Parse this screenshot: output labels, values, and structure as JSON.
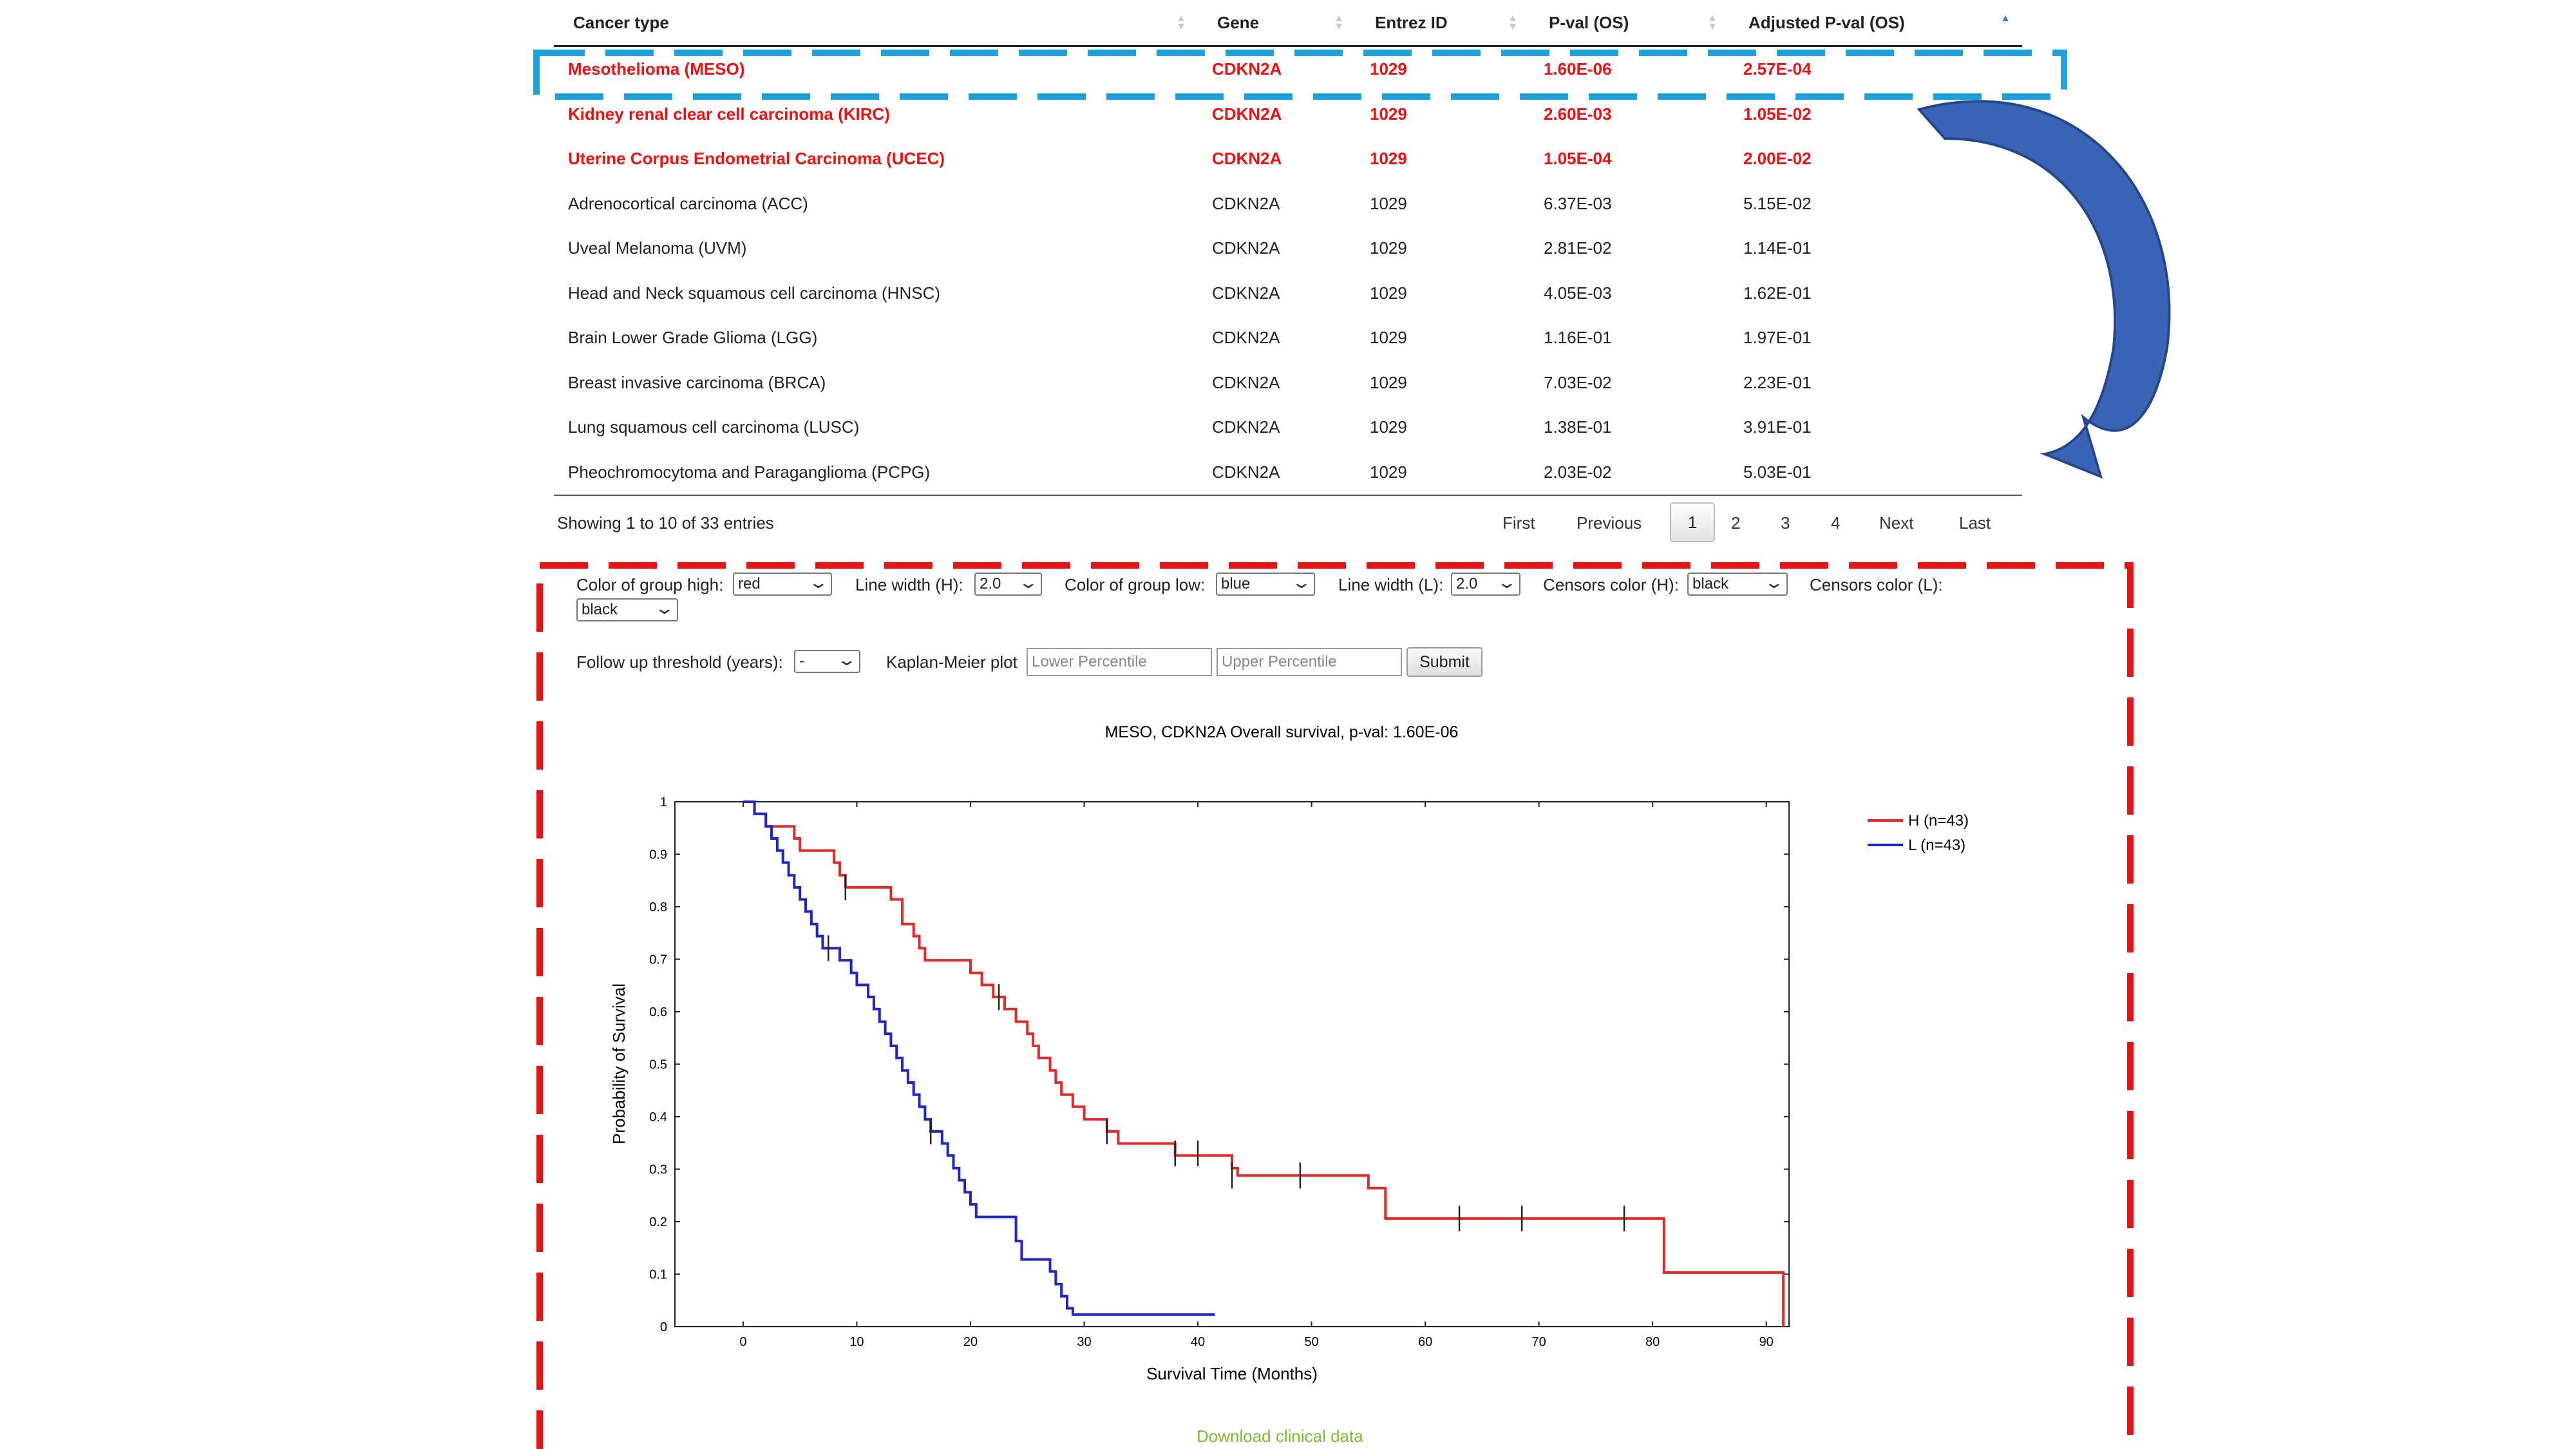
{
  "table": {
    "columns": [
      "Cancer type",
      "Gene",
      "Entrez ID",
      "P-val (OS)",
      "Adjusted P-val (OS)"
    ],
    "rows": [
      {
        "cancer_type": "Mesothelioma (MESO)",
        "gene": "CDKN2A",
        "entrez_id": "1029",
        "pval": "1.60E-06",
        "adj_pval": "2.57E-04",
        "highlight": true
      },
      {
        "cancer_type": "Kidney renal clear cell carcinoma (KIRC)",
        "gene": "CDKN2A",
        "entrez_id": "1029",
        "pval": "2.60E-03",
        "adj_pval": "1.05E-02",
        "highlight": true
      },
      {
        "cancer_type": "Uterine Corpus Endometrial Carcinoma (UCEC)",
        "gene": "CDKN2A",
        "entrez_id": "1029",
        "pval": "1.05E-04",
        "adj_pval": "2.00E-02",
        "highlight": true
      },
      {
        "cancer_type": "Adrenocortical carcinoma (ACC)",
        "gene": "CDKN2A",
        "entrez_id": "1029",
        "pval": "6.37E-03",
        "adj_pval": "5.15E-02",
        "highlight": false
      },
      {
        "cancer_type": "Uveal Melanoma (UVM)",
        "gene": "CDKN2A",
        "entrez_id": "1029",
        "pval": "2.81E-02",
        "adj_pval": "1.14E-01",
        "highlight": false
      },
      {
        "cancer_type": "Head and Neck squamous cell carcinoma (HNSC)",
        "gene": "CDKN2A",
        "entrez_id": "1029",
        "pval": "4.05E-03",
        "adj_pval": "1.62E-01",
        "highlight": false
      },
      {
        "cancer_type": "Brain Lower Grade Glioma (LGG)",
        "gene": "CDKN2A",
        "entrez_id": "1029",
        "pval": "1.16E-01",
        "adj_pval": "1.97E-01",
        "highlight": false
      },
      {
        "cancer_type": "Breast invasive carcinoma (BRCA)",
        "gene": "CDKN2A",
        "entrez_id": "1029",
        "pval": "7.03E-02",
        "adj_pval": "2.23E-01",
        "highlight": false
      },
      {
        "cancer_type": "Lung squamous cell carcinoma (LUSC)",
        "gene": "CDKN2A",
        "entrez_id": "1029",
        "pval": "1.38E-01",
        "adj_pval": "3.91E-01",
        "highlight": false
      },
      {
        "cancer_type": "Pheochromocytoma and Paraganglioma (PCPG)",
        "gene": "CDKN2A",
        "entrez_id": "1029",
        "pval": "2.03E-02",
        "adj_pval": "5.03E-01",
        "highlight": false
      }
    ],
    "info": "Showing 1 to 10 of 33 entries",
    "pagination": {
      "first": "First",
      "previous": "Previous",
      "pages": [
        "1",
        "2",
        "3",
        "4"
      ],
      "current": "1",
      "next": "Next",
      "last": "Last"
    }
  },
  "controls": {
    "color_high_label": "Color of group high:",
    "color_high_value": "red",
    "line_width_h_label": "Line width (H):",
    "line_width_h_value": "2.0",
    "color_low_label": "Color of group low:",
    "color_low_value": "blue",
    "line_width_l_label": "Line width (L):",
    "line_width_l_value": "2.0",
    "censors_h_label": "Censors color (H):",
    "censors_h_value": "black",
    "censors_l_label": "Censors color (L):",
    "censors_l_value": "black",
    "followup_label": "Follow up threshold (years):",
    "followup_value": "-",
    "km_label": "Kaplan-Meier plot",
    "lower_placeholder": "Lower Percentile",
    "upper_placeholder": "Upper Percentile",
    "submit_label": "Submit"
  },
  "download_label": "Download clinical data",
  "colors": {
    "highlight_text": "#ee1111",
    "table_callout": "#1aa3de",
    "panel_callout": "#ee1111",
    "arrow": "#3a64b6",
    "series_high": "#e02a2a",
    "series_low": "#1e26c8",
    "link": "#7dbb2e"
  },
  "chart_data": {
    "type": "line",
    "title": "MESO, CDKN2A Overall survival, p-val: 1.60E-06",
    "xlabel": "Survival Time (Months)",
    "ylabel": "Probability of Survival",
    "xlim": [
      -6,
      92
    ],
    "ylim": [
      0,
      1
    ],
    "xticks": [
      0,
      10,
      20,
      30,
      40,
      50,
      60,
      70,
      80,
      90
    ],
    "yticks": [
      0,
      0.1,
      0.2,
      0.3,
      0.4,
      0.5,
      0.6,
      0.7,
      0.8,
      0.9,
      1
    ],
    "legend_position": "top-right",
    "series": [
      {
        "name": "H (n=43)",
        "steps": [
          [
            0,
            1
          ],
          [
            1,
            0.977
          ],
          [
            2,
            0.953
          ],
          [
            4.5,
            0.93
          ],
          [
            5,
            0.907
          ],
          [
            8,
            0.884
          ],
          [
            8.5,
            0.86
          ],
          [
            9,
            0.837
          ],
          [
            13,
            0.814
          ],
          [
            14,
            0.767
          ],
          [
            15,
            0.744
          ],
          [
            15.5,
            0.721
          ],
          [
            16,
            0.698
          ],
          [
            20,
            0.674
          ],
          [
            21,
            0.651
          ],
          [
            22,
            0.628
          ],
          [
            23,
            0.605
          ],
          [
            24,
            0.581
          ],
          [
            25,
            0.558
          ],
          [
            25.5,
            0.535
          ],
          [
            26,
            0.512
          ],
          [
            27,
            0.488
          ],
          [
            27.5,
            0.465
          ],
          [
            28,
            0.442
          ],
          [
            29,
            0.419
          ],
          [
            30,
            0.395
          ],
          [
            32,
            0.372
          ],
          [
            33,
            0.349
          ],
          [
            38,
            0.326
          ],
          [
            43,
            0.302
          ],
          [
            43.5,
            0.288
          ],
          [
            55,
            0.264
          ],
          [
            56.5,
            0.206
          ],
          [
            81,
            0.103
          ],
          [
            91.5,
            0
          ]
        ],
        "censored": [
          [
            9,
            0.837
          ],
          [
            22.5,
            0.628
          ],
          [
            32,
            0.372
          ],
          [
            38,
            0.33
          ],
          [
            40,
            0.33
          ],
          [
            43,
            0.288
          ],
          [
            49,
            0.288
          ],
          [
            63,
            0.206
          ],
          [
            68.5,
            0.206
          ],
          [
            77.5,
            0.206
          ]
        ]
      },
      {
        "name": "L (n=43)",
        "steps": [
          [
            0,
            1
          ],
          [
            1,
            0.977
          ],
          [
            2,
            0.953
          ],
          [
            2.5,
            0.93
          ],
          [
            3,
            0.907
          ],
          [
            3.5,
            0.884
          ],
          [
            4,
            0.86
          ],
          [
            4.5,
            0.837
          ],
          [
            5,
            0.814
          ],
          [
            5.5,
            0.791
          ],
          [
            6,
            0.767
          ],
          [
            6.5,
            0.744
          ],
          [
            7,
            0.721
          ],
          [
            8.5,
            0.698
          ],
          [
            9.5,
            0.674
          ],
          [
            10,
            0.651
          ],
          [
            11,
            0.628
          ],
          [
            11.5,
            0.605
          ],
          [
            12,
            0.581
          ],
          [
            12.5,
            0.558
          ],
          [
            13,
            0.535
          ],
          [
            13.5,
            0.512
          ],
          [
            14,
            0.488
          ],
          [
            14.5,
            0.465
          ],
          [
            15,
            0.442
          ],
          [
            15.5,
            0.419
          ],
          [
            16,
            0.395
          ],
          [
            16.5,
            0.372
          ],
          [
            17.5,
            0.349
          ],
          [
            18,
            0.326
          ],
          [
            18.5,
            0.302
          ],
          [
            19,
            0.279
          ],
          [
            19.5,
            0.256
          ],
          [
            20,
            0.233
          ],
          [
            20.5,
            0.209
          ],
          [
            24,
            0.163
          ],
          [
            24.5,
            0.128
          ],
          [
            27,
            0.105
          ],
          [
            27.5,
            0.081
          ],
          [
            28,
            0.058
          ],
          [
            28.5,
            0.035
          ],
          [
            29,
            0.023
          ],
          [
            41.5,
            0.023
          ]
        ],
        "censored": [
          [
            7.5,
            0.721
          ],
          [
            16.5,
            0.372
          ]
        ]
      }
    ]
  }
}
